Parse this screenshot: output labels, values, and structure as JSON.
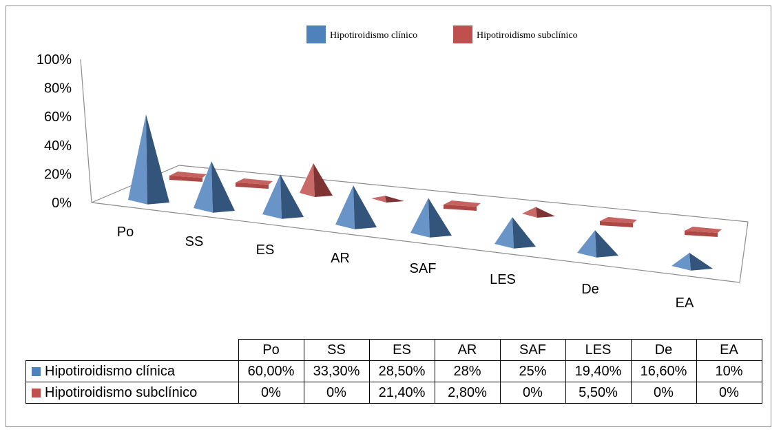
{
  "colors": {
    "series1": "#4f81bd",
    "series2": "#c0504d",
    "frame": "#8c8c8c"
  },
  "chart_data": {
    "type": "bar",
    "style": "3d-pyramid",
    "categories": [
      "Po",
      "SS",
      "ES",
      "AR",
      "SAF",
      "LES",
      "De",
      "EA"
    ],
    "series": [
      {
        "name": "Hipotiroidismo clínico",
        "values": [
          60.0,
          33.3,
          28.5,
          28,
          25,
          19.4,
          16.6,
          10
        ]
      },
      {
        "name": "Hipotiroidismo subclínico",
        "values": [
          0,
          0,
          21.4,
          2.8,
          0,
          5.5,
          0,
          0
        ]
      }
    ],
    "ylim": [
      0,
      100
    ],
    "yticks": [
      "0%",
      "20%",
      "40%",
      "60%",
      "80%",
      "100%"
    ],
    "legend_position": "top-center",
    "grid": false
  },
  "table": {
    "headers": [
      "Po",
      "SS",
      "ES",
      "AR",
      "SAF",
      "LES",
      "De",
      "EA"
    ],
    "rows": [
      {
        "label": "Hipotiroidismo clínica",
        "color": "#4f81bd",
        "values": [
          "60,00%",
          "33,30%",
          "28,50%",
          "28%",
          "25%",
          "19,40%",
          "16,60%",
          "10%"
        ]
      },
      {
        "label": "Hipotiroidismo subclínico",
        "color": "#c0504d",
        "values": [
          "0%",
          "0%",
          "21,40%",
          "2,80%",
          "0%",
          "5,50%",
          "0%",
          "0%"
        ]
      }
    ]
  }
}
